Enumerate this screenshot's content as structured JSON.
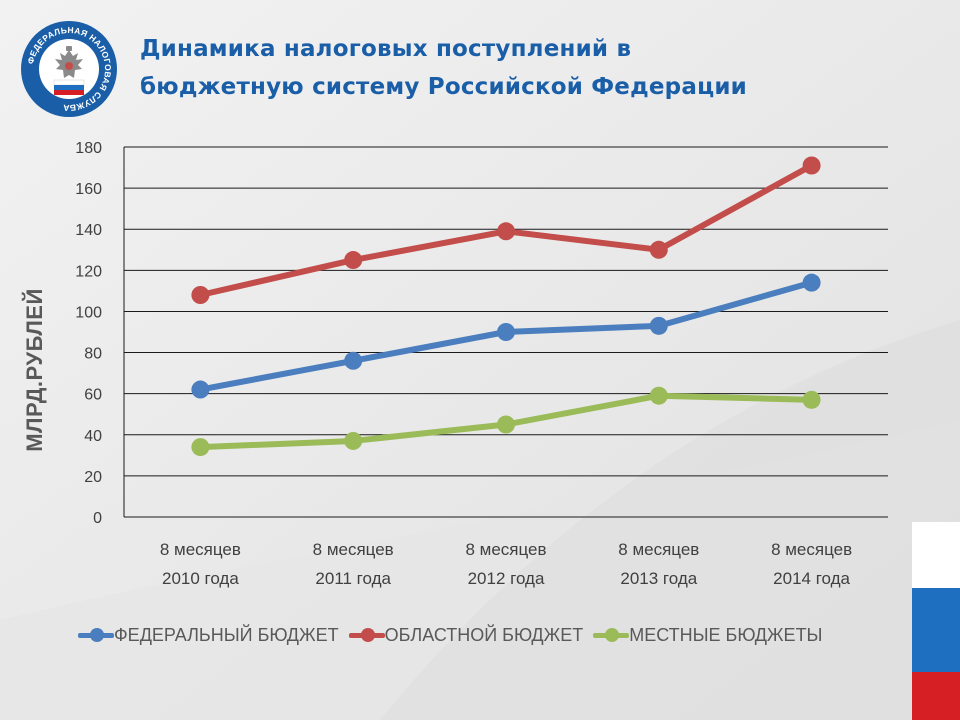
{
  "title": {
    "line1": "Динамика налоговых поступлений в",
    "line2": "бюджетную систему Российской Федерации"
  },
  "logo": {
    "icon": "federal-tax-service-emblem",
    "text": "ФЕДЕРАЛЬНАЯ НАЛОГОВАЯ СЛУЖБА"
  },
  "colors": {
    "title": "#1a5ea8",
    "federal": "#4a7ebf",
    "regional": "#c24d4a",
    "local": "#9bbb59",
    "flag_white": "#ffffff",
    "flag_blue": "#1f6fc0",
    "flag_red": "#d51f24"
  },
  "chart_data": {
    "type": "line",
    "title": "",
    "xlabel": "",
    "ylabel": "МЛРД.РУБЛЕЙ",
    "ylim": [
      0,
      180
    ],
    "yticks": [
      0,
      20,
      40,
      60,
      80,
      100,
      120,
      140,
      160,
      180
    ],
    "grid": true,
    "legend_position": "bottom",
    "categories": [
      [
        "8 месяцев",
        "2010 года"
      ],
      [
        "8 месяцев",
        "2011 года"
      ],
      [
        "8 месяцев",
        "2012 года"
      ],
      [
        "8 месяцев",
        "2013 года"
      ],
      [
        "8 месяцев",
        "2014 года"
      ]
    ],
    "series": [
      {
        "name": "ФЕДЕРАЛЬНЫЙ БЮДЖЕТ",
        "color": "#4a7ebf",
        "values": [
          62,
          76,
          90,
          93,
          114
        ]
      },
      {
        "name": "ОБЛАСТНОЙ БЮДЖЕТ",
        "color": "#c24d4a",
        "values": [
          108,
          125,
          139,
          130,
          171
        ]
      },
      {
        "name": "МЕСТНЫЕ БЮДЖЕТЫ",
        "color": "#9bbb59",
        "values": [
          34,
          37,
          45,
          59,
          57
        ]
      }
    ]
  }
}
